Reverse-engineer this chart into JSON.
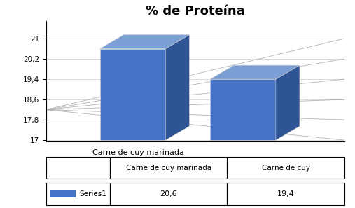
{
  "title": "% de Proteína",
  "categories": [
    "Carne de cuy marinada",
    "Carne de cuy"
  ],
  "values": [
    20.6,
    19.4
  ],
  "bar_color_front": "#4472C4",
  "bar_color_top": "#7B9FD4",
  "bar_color_side": "#2E5496",
  "yticks": [
    17,
    17.8,
    18.6,
    19.4,
    20.2,
    21
  ],
  "ylim_min": 17,
  "ylim_max": 21,
  "table_series_label": "Series1",
  "table_values": [
    "20,6",
    "19,4"
  ],
  "background_color": "#ffffff",
  "legend_color": "#4472C4",
  "grid_color": "#AAAAAA"
}
